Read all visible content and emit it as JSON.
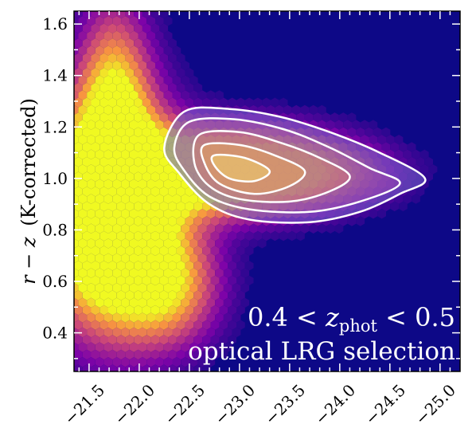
{
  "chart_data": {
    "type": "heatmap",
    "subtype": "hexbin density with contour overlay",
    "ylabel_var": "r − z",
    "ylabel_suffix": "(K-corrected)",
    "xlabel": "",
    "xlim": [
      -21.35,
      -25.2
    ],
    "ylim": [
      0.25,
      1.65
    ],
    "x_ticks": [
      -21.5,
      -22.0,
      -22.5,
      -23.0,
      -23.5,
      -24.0,
      -24.5,
      -25.0
    ],
    "x_tick_labels": [
      "−21.5",
      "−22.0",
      "−22.5",
      "−23.0",
      "−23.5",
      "−24.0",
      "−24.5",
      "−25.0"
    ],
    "y_ticks": [
      0.4,
      0.6,
      0.8,
      1.0,
      1.2,
      1.4,
      1.6
    ],
    "y_tick_labels": [
      "0.4",
      "0.6",
      "0.8",
      "1.0",
      "1.2",
      "1.4",
      "1.6"
    ],
    "annotation_line1": {
      "left": "0.4 < ",
      "var": "z",
      "sub": "phot",
      "right": " < 0.5"
    },
    "annotation_line2": "optical LRG selection",
    "colormap": "plasma",
    "background_color": "#0d0887",
    "contour_color": "#ffffff",
    "contour_levels": [
      [
        [
          -22.45,
          1.26
        ],
        [
          -22.9,
          1.27
        ],
        [
          -23.4,
          1.24
        ],
        [
          -23.9,
          1.18
        ],
        [
          -24.4,
          1.1
        ],
        [
          -24.85,
          1.0
        ],
        [
          -24.6,
          0.94
        ],
        [
          -24.2,
          0.87
        ],
        [
          -23.7,
          0.83
        ],
        [
          -23.1,
          0.84
        ],
        [
          -22.7,
          0.9
        ],
        [
          -22.4,
          1.02
        ],
        [
          -22.25,
          1.12
        ]
      ],
      [
        [
          -22.5,
          1.22
        ],
        [
          -22.95,
          1.23
        ],
        [
          -23.45,
          1.19
        ],
        [
          -23.9,
          1.12
        ],
        [
          -24.3,
          1.04
        ],
        [
          -24.6,
          0.98
        ],
        [
          -24.2,
          0.91
        ],
        [
          -23.7,
          0.87
        ],
        [
          -23.1,
          0.88
        ],
        [
          -22.7,
          0.93
        ],
        [
          -22.45,
          1.03
        ],
        [
          -22.35,
          1.12
        ]
      ],
      [
        [
          -22.6,
          1.17
        ],
        [
          -23.0,
          1.18
        ],
        [
          -23.4,
          1.14
        ],
        [
          -23.8,
          1.08
        ],
        [
          -24.1,
          1.01
        ],
        [
          -23.9,
          0.95
        ],
        [
          -23.5,
          0.91
        ],
        [
          -23.0,
          0.92
        ],
        [
          -22.7,
          0.97
        ],
        [
          -22.55,
          1.06
        ]
      ],
      [
        [
          -22.65,
          1.13
        ],
        [
          -23.0,
          1.13
        ],
        [
          -23.35,
          1.09
        ],
        [
          -23.65,
          1.03
        ],
        [
          -23.5,
          0.97
        ],
        [
          -23.15,
          0.94
        ],
        [
          -22.8,
          0.98
        ],
        [
          -22.65,
          1.06
        ]
      ],
      [
        [
          -22.75,
          1.09
        ],
        [
          -23.05,
          1.08
        ],
        [
          -23.3,
          1.03
        ],
        [
          -23.15,
          0.99
        ],
        [
          -22.9,
          1.0
        ],
        [
          -22.75,
          1.05
        ]
      ]
    ]
  }
}
